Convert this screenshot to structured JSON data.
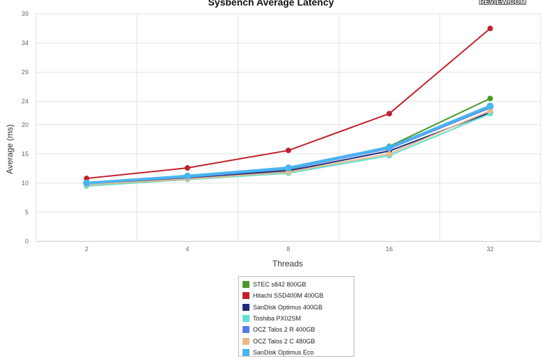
{
  "chart_data": {
    "type": "line",
    "title": "Sysbench Average Latency",
    "logo_text": "REVIEW.COM",
    "xlabel": "Threads",
    "ylabel": "Average (ms)",
    "categories": [
      "2",
      "4",
      "8",
      "16",
      "32"
    ],
    "ylim": [
      0,
      39
    ],
    "yticks": [
      0,
      5,
      10,
      15,
      20,
      24,
      29,
      34,
      39
    ],
    "grid": true,
    "legend_position": "bottom-center",
    "series": [
      {
        "name": "STEC s842 800GB",
        "color": "#4a9a2a",
        "values": [
          9.9,
          10.9,
          12.3,
          16.3,
          24.5
        ]
      },
      {
        "name": "Hitachi SSD400M 400GB",
        "color": "#c0212e",
        "values": [
          10.8,
          12.6,
          15.6,
          21.9,
          36.5
        ]
      },
      {
        "name": "SanDisk Optimus 400GB",
        "color": "#1c2d7a",
        "values": [
          9.9,
          10.9,
          12.1,
          15.5,
          22.1
        ]
      },
      {
        "name": "Toshiba PX02SM",
        "color": "#5fe0d2",
        "values": [
          9.5,
          10.6,
          11.7,
          14.7,
          21.9
        ]
      },
      {
        "name": "OCZ Talos 2 R 400GB",
        "color": "#5b78e8",
        "values": [
          10.0,
          11.0,
          12.4,
          15.9,
          22.9
        ]
      },
      {
        "name": "OCZ Talos 2 C 480GB",
        "color": "#e8b98a",
        "values": [
          9.7,
          10.7,
          11.9,
          15.0,
          22.4
        ]
      },
      {
        "name": "SanDisk Optimus Eco",
        "color": "#4ab4ef",
        "values": [
          10.0,
          11.2,
          12.6,
          16.1,
          23.2
        ]
      }
    ]
  }
}
